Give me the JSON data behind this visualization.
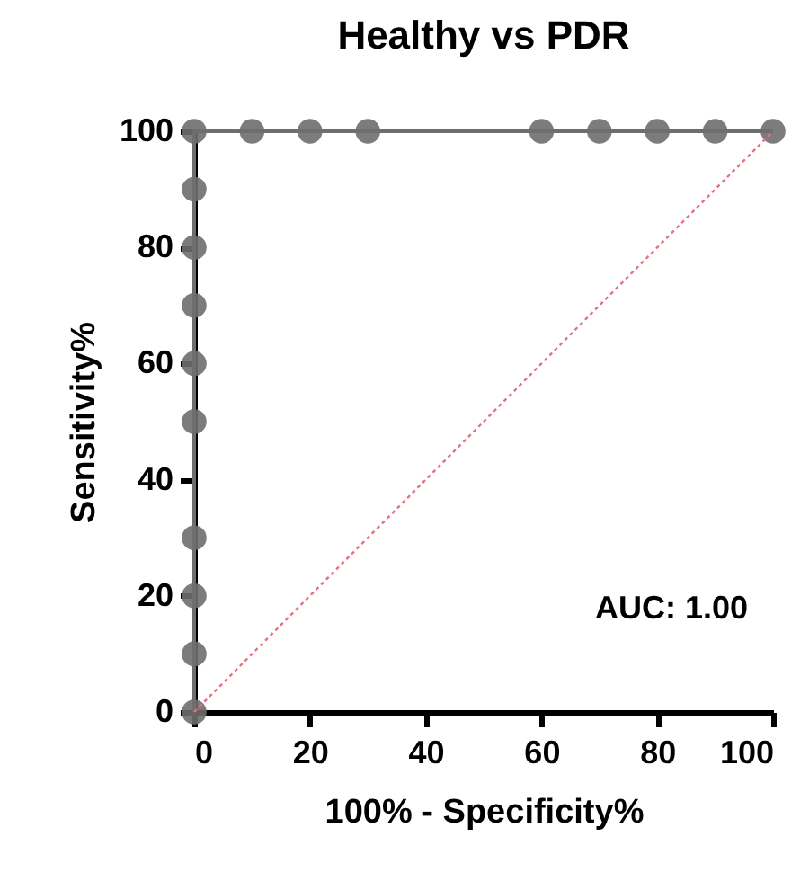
{
  "chart_data": {
    "type": "line",
    "title": "Healthy vs PDR",
    "xlabel": "100% - Specificity%",
    "ylabel": "Sensitivity%",
    "series": [
      {
        "color": "#6e6e6e",
        "marker": "circle",
        "line_style": "solid",
        "x": [
          0,
          0,
          0,
          0,
          0,
          0,
          0,
          0,
          0,
          0,
          10,
          20,
          30,
          60,
          70,
          80,
          90,
          100
        ],
        "values": [
          0,
          10,
          20,
          30,
          50,
          60,
          70,
          80,
          90,
          100,
          100,
          100,
          100,
          100,
          100,
          100,
          100,
          100
        ]
      },
      {
        "color": "#e8707e",
        "marker": "none",
        "line_style": "dotted",
        "x": [
          0,
          100
        ],
        "values": [
          0,
          100
        ]
      }
    ],
    "xlim": [
      0,
      100
    ],
    "ylim": [
      0,
      100
    ],
    "xticks": [
      0,
      20,
      40,
      60,
      80,
      100
    ],
    "yticks": [
      0,
      20,
      40,
      60,
      80,
      100
    ],
    "grid": false,
    "annotations": [
      "AUC: 1.00"
    ]
  }
}
